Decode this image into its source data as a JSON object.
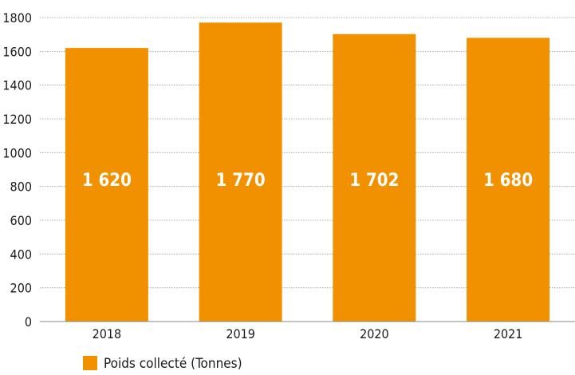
{
  "chart_data": {
    "type": "bar",
    "categories": [
      "2018",
      "2019",
      "2020",
      "2021"
    ],
    "series": [
      {
        "name": "Poids collecté (Tonnes)",
        "values": [
          1620,
          1770,
          1702,
          1680
        ],
        "value_labels": [
          "1 620",
          "1 770",
          "1 702",
          "1 680"
        ],
        "color": "#f29100"
      }
    ],
    "ylim": [
      0,
      1800
    ],
    "yticks": [
      "0",
      "200",
      "400",
      "600",
      "800",
      "1000",
      "1200",
      "1400",
      "1600",
      "1800"
    ],
    "grid": true,
    "legend_position": "bottom-left",
    "title": "",
    "xlabel": "",
    "ylabel": ""
  }
}
